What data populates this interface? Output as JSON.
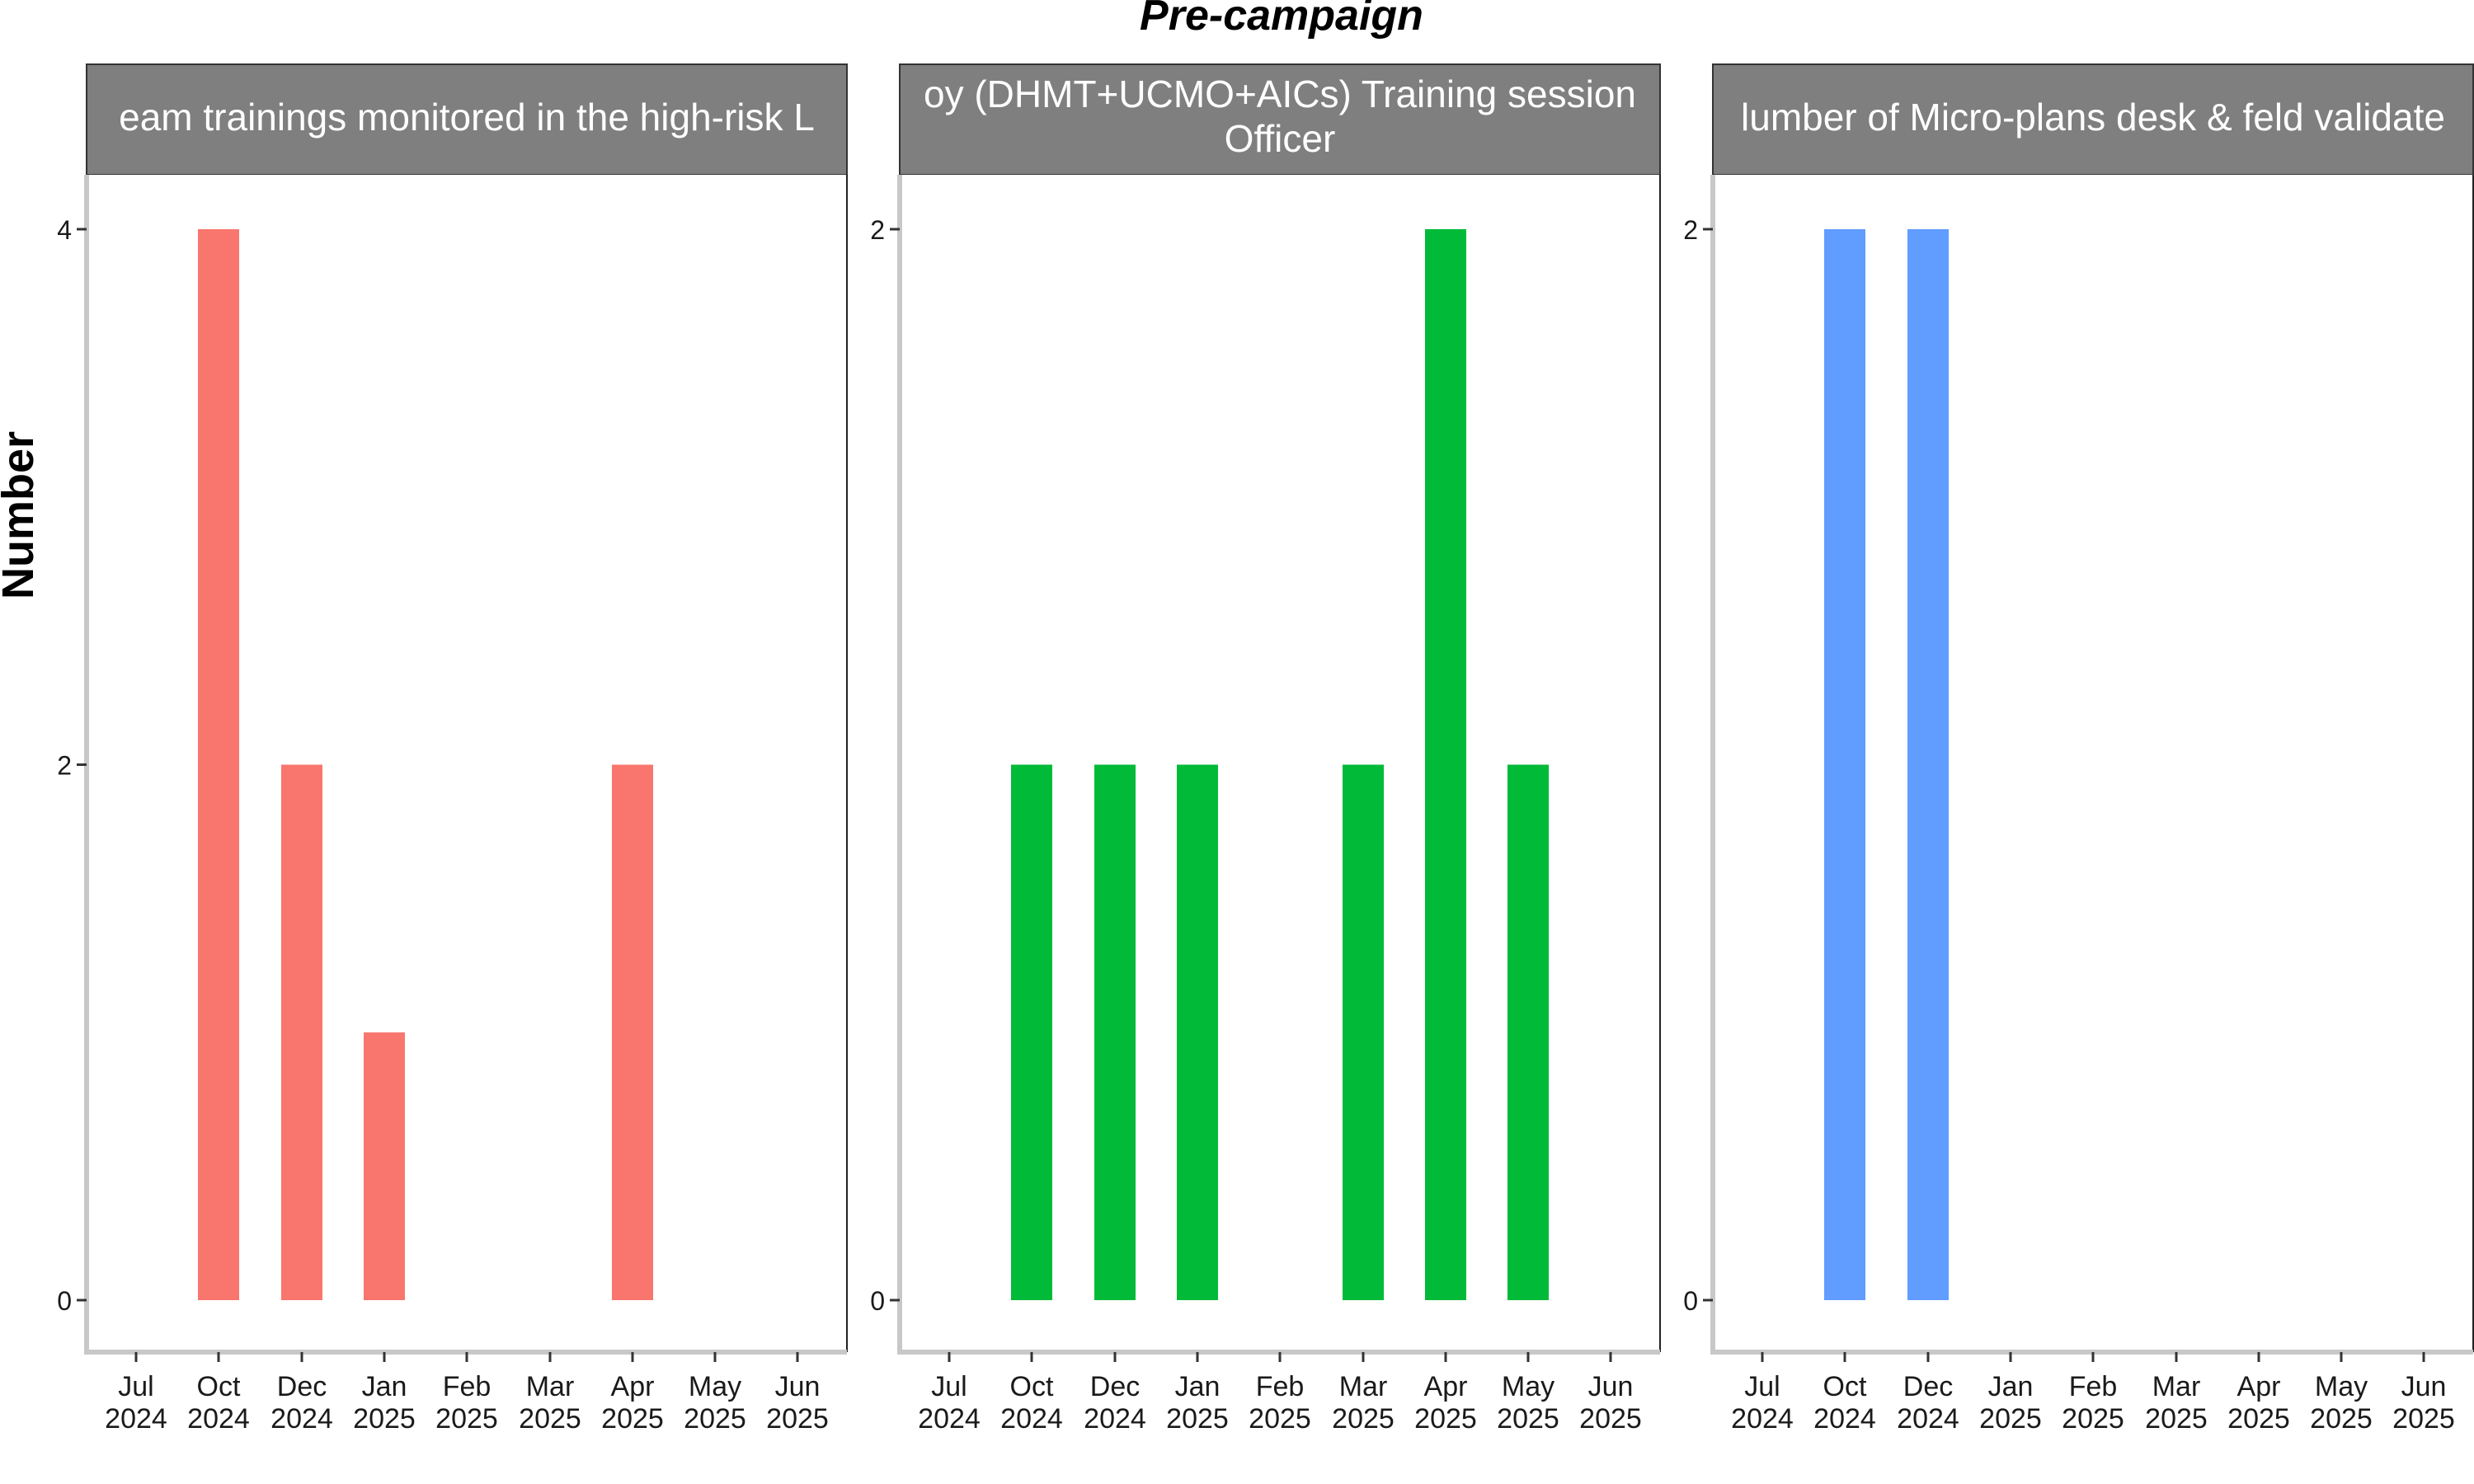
{
  "title": "Pre-campaign",
  "ylabel": "Number",
  "colors": {
    "strip_bg": "#7f7f7f",
    "strip_text": "#ffffff",
    "axis": "#c8c8c8",
    "text": "#000000"
  },
  "chart_data": [
    {
      "type": "bar",
      "strip_lines": [
        "eam trainings monitored in the high-risk L"
      ],
      "color": "#F8766D",
      "x": [
        "2024-10",
        "2024-12",
        "2025-01",
        "2025-04"
      ],
      "values": [
        4,
        2,
        1,
        2
      ],
      "ylim": [
        0,
        4
      ],
      "yticks": [
        0,
        2,
        4
      ],
      "grid": false
    },
    {
      "type": "bar",
      "strip_lines": [
        "oy (DHMT+UCMO+AICs) Training session",
        "Officer"
      ],
      "color": "#00BA38",
      "x": [
        "2024-10",
        "2024-12",
        "2025-01",
        "2025-03",
        "2025-04",
        "2025-05"
      ],
      "values": [
        1,
        1,
        1,
        1,
        2,
        1
      ],
      "ylim": [
        0,
        2
      ],
      "yticks": [
        0,
        2
      ],
      "grid": false
    },
    {
      "type": "bar",
      "strip_lines": [
        "lumber of Micro-plans desk & feld validate"
      ],
      "color": "#619CFF",
      "x": [
        "2024-10",
        "2024-12"
      ],
      "values": [
        2,
        2
      ],
      "ylim": [
        0,
        2
      ],
      "yticks": [
        0,
        2
      ],
      "grid": false
    }
  ],
  "xticks": [
    {
      "month": "Jul",
      "year": "2024"
    },
    {
      "month": "Oct",
      "year": "2024"
    },
    {
      "month": "Dec",
      "year": "2024"
    },
    {
      "month": "Jan",
      "year": "2025"
    },
    {
      "month": "Feb",
      "year": "2025"
    },
    {
      "month": "Mar",
      "year": "2025"
    },
    {
      "month": "Apr",
      "year": "2025"
    },
    {
      "month": "May",
      "year": "2025"
    },
    {
      "month": "Jun",
      "year": "2025"
    }
  ]
}
